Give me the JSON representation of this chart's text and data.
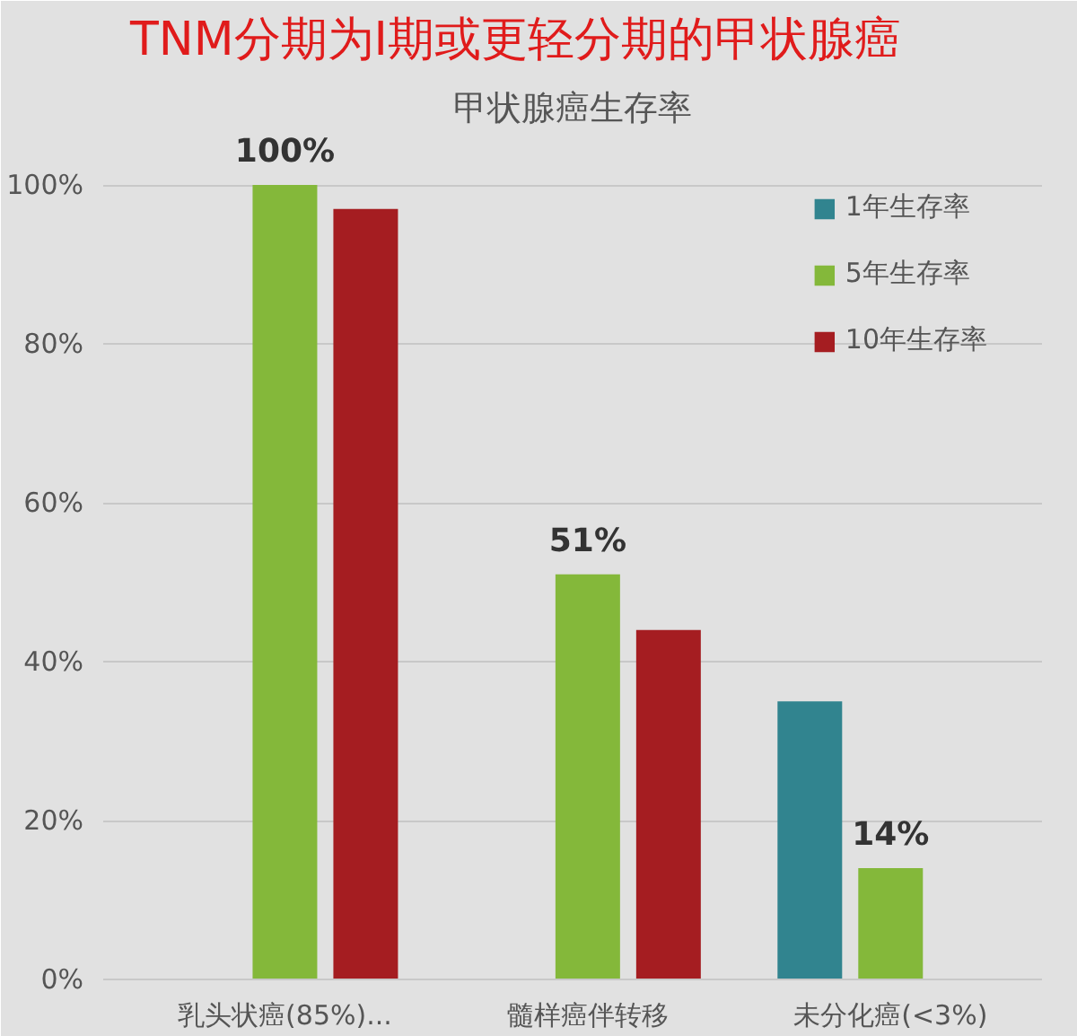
{
  "chart_data": {
    "type": "bar",
    "title": "TNM分期为I期或更轻分期的甲状腺癌",
    "subtitle": "甲状腺癌生存率",
    "categories": [
      "乳头状癌(85%)...",
      "髓样癌伴转移",
      "未分化癌(<3%)"
    ],
    "series": [
      {
        "name": "1年生存率",
        "color": "#31848f",
        "values": [
          null,
          null,
          35
        ]
      },
      {
        "name": "5年生存率",
        "color": "#84b83a",
        "values": [
          100,
          51,
          14
        ],
        "value_labels": [
          "100%",
          "51%",
          "14%"
        ]
      },
      {
        "name": "10年生存率",
        "color": "#a51d21",
        "values": [
          97,
          44,
          null
        ]
      }
    ],
    "ylim": [
      0,
      100
    ],
    "yticks": [
      {
        "value": 0,
        "label": "0%"
      },
      {
        "value": 20,
        "label": "20%"
      },
      {
        "value": 40,
        "label": "40%"
      },
      {
        "value": 60,
        "label": "60%"
      },
      {
        "value": 80,
        "label": "80%"
      },
      {
        "value": 100,
        "label": "100%"
      }
    ],
    "grid": "y",
    "legend": "top right"
  }
}
